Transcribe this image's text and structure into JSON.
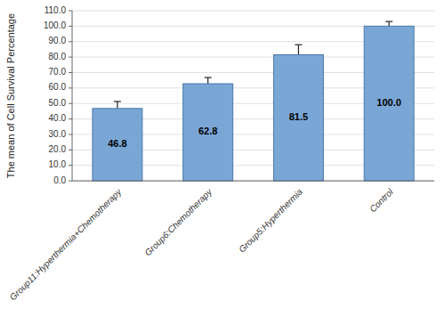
{
  "chart_data": {
    "type": "bar",
    "categories": [
      "Group11:Hyperthermia+Chemotherapy",
      "Group6:Chemotherapy",
      "Group5:Hyperthermia",
      "Control"
    ],
    "values": [
      46.8,
      62.8,
      81.5,
      100.0
    ],
    "errors": [
      4.5,
      4.0,
      6.5,
      3.0
    ],
    "value_labels": [
      "46.8",
      "62.8",
      "81.5",
      "100.0"
    ],
    "data_labels": true,
    "ylabel": "The mean of Cell Survival Percentage",
    "ylim": [
      0.0,
      110.0
    ],
    "yticks": [
      {
        "value": 0,
        "label": "0.0"
      },
      {
        "value": 10,
        "label": "10.0"
      },
      {
        "value": 20,
        "label": "20.0"
      },
      {
        "value": 30,
        "label": "30.0"
      },
      {
        "value": 40,
        "label": "40.0"
      },
      {
        "value": 50,
        "label": "50.0"
      },
      {
        "value": 60,
        "label": "60.0"
      },
      {
        "value": 70,
        "label": "70.0"
      },
      {
        "value": 80,
        "label": "80.0"
      },
      {
        "value": 90,
        "label": "90.0"
      },
      {
        "value": 100,
        "label": "100.0"
      },
      {
        "value": 110,
        "label": "110.0"
      }
    ],
    "grid": true
  }
}
